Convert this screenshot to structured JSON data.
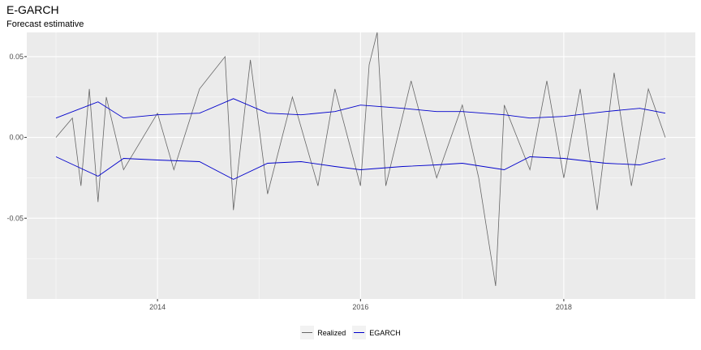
{
  "chart_data": {
    "type": "line",
    "title": "E-GARCH",
    "subtitle": "Forecast estimative",
    "xlabel": "",
    "ylabel": "",
    "x_range": [
      "2013-01-01",
      "2019-01-01"
    ],
    "ylim": [
      -0.1,
      0.065
    ],
    "x_ticks": [
      {
        "value": "2014-01-01",
        "label": "2014"
      },
      {
        "value": "2016-01-01",
        "label": "2016"
      },
      {
        "value": "2018-01-01",
        "label": "2018"
      }
    ],
    "y_ticks": [
      {
        "value": 0.05,
        "label": "0.05"
      },
      {
        "value": 0.0,
        "label": "0.00"
      },
      {
        "value": -0.05,
        "label": "-0.05"
      }
    ],
    "grid": true,
    "legend_position": "bottom",
    "series": [
      {
        "name": "Realized",
        "color": "#666666",
        "points": [
          [
            "2013-01-01",
            0.0
          ],
          [
            "2013-03-01",
            0.012
          ],
          [
            "2013-04-01",
            -0.03
          ],
          [
            "2013-05-01",
            0.03
          ],
          [
            "2013-06-01",
            -0.04
          ],
          [
            "2013-07-01",
            0.025
          ],
          [
            "2013-09-01",
            -0.02
          ],
          [
            "2014-01-01",
            0.015
          ],
          [
            "2014-03-01",
            -0.02
          ],
          [
            "2014-06-01",
            0.03
          ],
          [
            "2014-09-01",
            0.05
          ],
          [
            "2014-10-01",
            -0.045
          ],
          [
            "2014-12-01",
            0.048
          ],
          [
            "2015-02-01",
            -0.035
          ],
          [
            "2015-05-01",
            0.025
          ],
          [
            "2015-08-01",
            -0.03
          ],
          [
            "2015-10-01",
            0.03
          ],
          [
            "2016-01-01",
            -0.03
          ],
          [
            "2016-02-01",
            0.045
          ],
          [
            "2016-03-01",
            0.065
          ],
          [
            "2016-04-01",
            -0.03
          ],
          [
            "2016-07-01",
            0.035
          ],
          [
            "2016-10-01",
            -0.025
          ],
          [
            "2017-01-01",
            0.02
          ],
          [
            "2017-03-01",
            -0.025
          ],
          [
            "2017-05-01",
            -0.092
          ],
          [
            "2017-06-01",
            0.02
          ],
          [
            "2017-09-01",
            -0.02
          ],
          [
            "2017-11-01",
            0.035
          ],
          [
            "2018-01-01",
            -0.025
          ],
          [
            "2018-03-01",
            0.03
          ],
          [
            "2018-05-01",
            -0.045
          ],
          [
            "2018-07-01",
            0.04
          ],
          [
            "2018-09-01",
            -0.03
          ],
          [
            "2018-11-01",
            0.03
          ],
          [
            "2019-01-01",
            0.0
          ]
        ]
      },
      {
        "name": "EGARCH",
        "color": "#0000cc",
        "upper": [
          [
            "2013-01-01",
            0.012
          ],
          [
            "2013-06-01",
            0.022
          ],
          [
            "2013-09-01",
            0.012
          ],
          [
            "2014-01-01",
            0.014
          ],
          [
            "2014-06-01",
            0.015
          ],
          [
            "2014-10-01",
            0.024
          ],
          [
            "2015-02-01",
            0.015
          ],
          [
            "2015-06-01",
            0.014
          ],
          [
            "2015-10-01",
            0.016
          ],
          [
            "2016-01-01",
            0.02
          ],
          [
            "2016-06-01",
            0.018
          ],
          [
            "2016-10-01",
            0.016
          ],
          [
            "2017-01-01",
            0.016
          ],
          [
            "2017-06-01",
            0.014
          ],
          [
            "2017-09-01",
            0.012
          ],
          [
            "2018-01-01",
            0.013
          ],
          [
            "2018-06-01",
            0.016
          ],
          [
            "2018-10-01",
            0.018
          ],
          [
            "2019-01-01",
            0.015
          ]
        ],
        "lower": [
          [
            "2013-01-01",
            -0.012
          ],
          [
            "2013-06-01",
            -0.024
          ],
          [
            "2013-09-01",
            -0.013
          ],
          [
            "2014-01-01",
            -0.014
          ],
          [
            "2014-06-01",
            -0.015
          ],
          [
            "2014-10-01",
            -0.026
          ],
          [
            "2015-02-01",
            -0.016
          ],
          [
            "2015-06-01",
            -0.015
          ],
          [
            "2015-10-01",
            -0.018
          ],
          [
            "2016-01-01",
            -0.02
          ],
          [
            "2016-06-01",
            -0.018
          ],
          [
            "2016-10-01",
            -0.017
          ],
          [
            "2017-01-01",
            -0.016
          ],
          [
            "2017-06-01",
            -0.02
          ],
          [
            "2017-09-01",
            -0.012
          ],
          [
            "2018-01-01",
            -0.013
          ],
          [
            "2018-06-01",
            -0.016
          ],
          [
            "2018-10-01",
            -0.017
          ],
          [
            "2019-01-01",
            -0.013
          ]
        ]
      }
    ]
  }
}
